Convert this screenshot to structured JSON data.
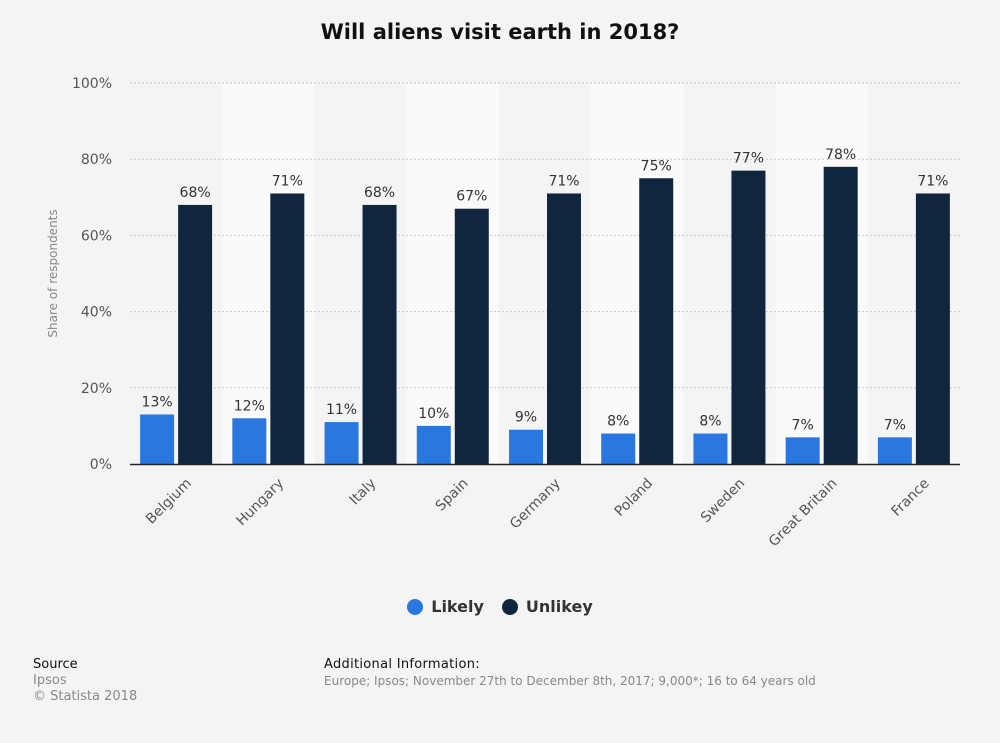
{
  "chart_data": {
    "type": "bar",
    "title": "Will aliens visit earth in 2018?",
    "ylabel": "Share of respondents",
    "xlabel": "",
    "categories": [
      "Belgium",
      "Hungary",
      "Italy",
      "Spain",
      "Germany",
      "Poland",
      "Sweden",
      "Great Britain",
      "France"
    ],
    "series": [
      {
        "name": "Likely",
        "color": "#2a77df",
        "values": [
          13,
          12,
          11,
          10,
          9,
          8,
          8,
          7,
          7
        ]
      },
      {
        "name": "Unlikey",
        "color": "#10263e",
        "values": [
          68,
          71,
          68,
          67,
          71,
          75,
          77,
          78,
          71
        ]
      }
    ],
    "ylim": [
      0,
      100
    ],
    "yticks": [
      "0%",
      "20%",
      "40%",
      "60%",
      "80%",
      "100%"
    ],
    "value_suffix": "%",
    "grid": true,
    "legend_position": "bottom"
  },
  "legend": [
    {
      "label": "Likely",
      "color": "#2a77df"
    },
    {
      "label": "Unlikey",
      "color": "#10263e"
    }
  ],
  "footer": {
    "source_heading": "Source",
    "source_name": "Ipsos",
    "copyright": "© Statista 2018",
    "additional_heading": "Additional Information:",
    "additional_text": "Europe; Ipsos; November 27th to December 8th, 2017; 9,000*; 16 to 64 years old"
  }
}
